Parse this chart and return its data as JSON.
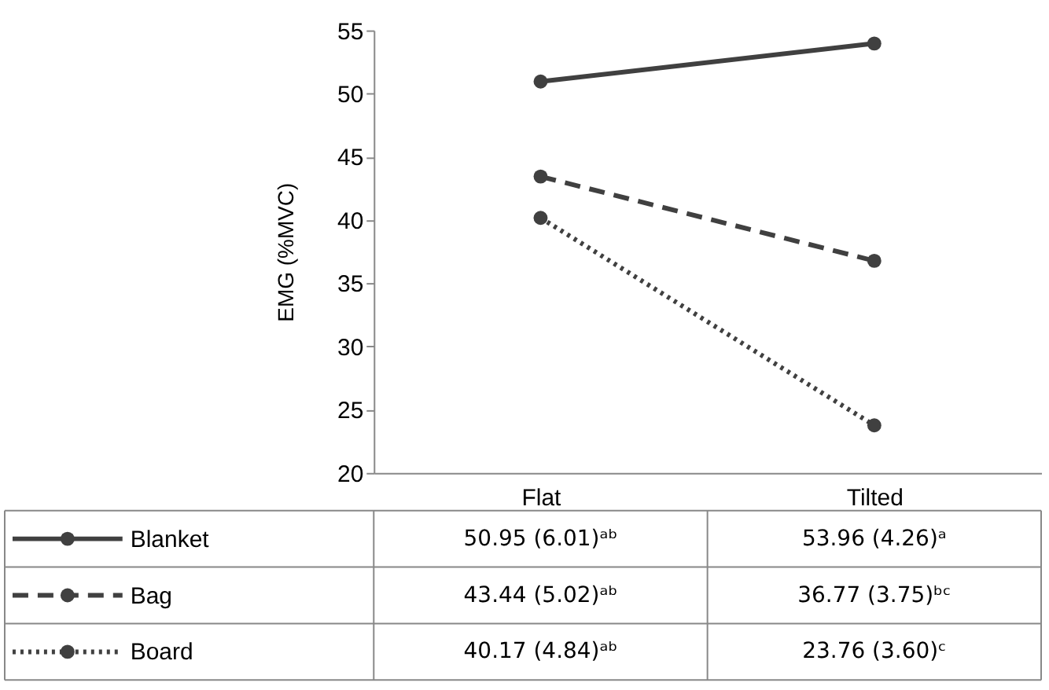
{
  "chart_data": {
    "type": "line",
    "ylabel": "EMG (%MVC)",
    "categories": [
      "Flat",
      "Tilted"
    ],
    "ylim": [
      20,
      55
    ],
    "yticks": [
      20,
      25,
      30,
      35,
      40,
      45,
      50,
      55
    ],
    "grid": false,
    "marker": "circle",
    "legend": "bottom",
    "series": [
      {
        "name": "Blanket",
        "color": "#404040",
        "line_style": "solid",
        "values": [
          50.95,
          53.96
        ],
        "value_labels": [
          "50.95 (6.01)ᵃᵇ",
          "53.96 (4.26)ᵃ"
        ]
      },
      {
        "name": "Bag",
        "color": "#404040",
        "line_style": "dashed",
        "values": [
          43.44,
          36.77
        ],
        "value_labels": [
          "43.44 (5.02)ᵃᵇ",
          "36.77 (3.75)ᵇᶜ"
        ]
      },
      {
        "name": "Board",
        "color": "#404040",
        "line_style": "dotted",
        "values": [
          40.17,
          23.76
        ],
        "value_labels": [
          "40.17 (4.84)ᵃᵇ",
          "23.76 (3.60)ᶜ"
        ]
      }
    ]
  }
}
